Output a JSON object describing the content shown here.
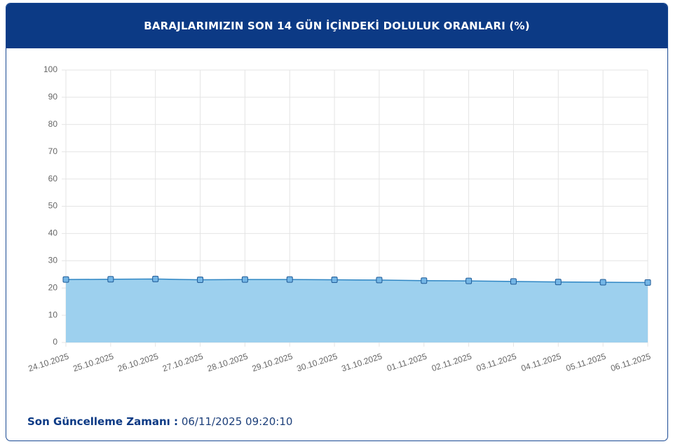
{
  "chart_data": {
    "type": "area",
    "title": "BARAJLARIMIZIN SON 14 GÜN İÇİNDEKİ DOLULUK ORANLARI (%)",
    "categories": [
      "24.10.2025",
      "25.10.2025",
      "26.10.2025",
      "27.10.2025",
      "28.10.2025",
      "29.10.2025",
      "30.10.2025",
      "31.10.2025",
      "01.11.2025",
      "02.11.2025",
      "03.11.2025",
      "04.11.2025",
      "05.11.2025",
      "06.11.2025"
    ],
    "values": [
      23.1,
      23.2,
      23.3,
      23.0,
      23.1,
      23.1,
      23.0,
      22.9,
      22.7,
      22.6,
      22.4,
      22.2,
      22.1,
      22.0
    ],
    "color": "#2f86c4",
    "fill_color": "#9dd0ee",
    "ylim": [
      0,
      100
    ],
    "yticks": [
      0,
      10,
      20,
      30,
      40,
      50,
      60,
      70,
      80,
      90,
      100
    ],
    "grid": true
  },
  "footer": {
    "label": "Son Güncelleme Zamanı :",
    "value": "06/11/2025 09:20:10"
  }
}
